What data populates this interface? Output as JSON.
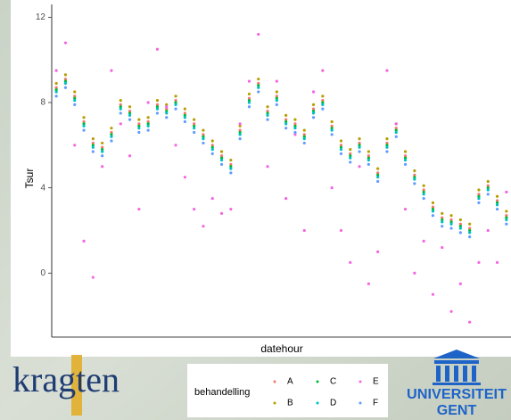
{
  "chart_data": {
    "type": "scatter",
    "x_label": "datehour",
    "y_label": "Tsur",
    "x": [
      0,
      1,
      2,
      3,
      4,
      5,
      6,
      7,
      8,
      9,
      10,
      11,
      12,
      13,
      14,
      15,
      16,
      17,
      18,
      19,
      20,
      21,
      22,
      23,
      24,
      25,
      26,
      27,
      28,
      29,
      30,
      31,
      32,
      33,
      34,
      35,
      36,
      37,
      38,
      39,
      40,
      41,
      42,
      43,
      44,
      45,
      46,
      47,
      48,
      49
    ],
    "xlim": [
      -0.5,
      49.5
    ],
    "ylim": [
      -3,
      12.6
    ],
    "yticks": [
      0,
      4,
      8,
      12
    ],
    "grid": false,
    "legend_title": "behandelling",
    "legend_position": "bottom",
    "series": [
      {
        "name": "A",
        "color": "#F8766D",
        "values": [
          8.7,
          9.1,
          8.3,
          7.1,
          6.1,
          5.9,
          6.6,
          7.9,
          7.6,
          7.0,
          7.1,
          7.9,
          7.7,
          8.1,
          7.5,
          7.0,
          6.5,
          6.0,
          5.5,
          5.1,
          6.7,
          8.2,
          8.9,
          7.6,
          8.3,
          7.2,
          7.0,
          6.5,
          7.7,
          8.1,
          6.9,
          6.0,
          5.6,
          6.1,
          5.5,
          4.7,
          6.1,
          6.8,
          5.5,
          4.6,
          3.9,
          3.1,
          2.6,
          2.5,
          2.3,
          2.1,
          3.7,
          4.1,
          3.4,
          2.7
        ]
      },
      {
        "name": "B",
        "color": "#B79F00",
        "values": [
          8.9,
          9.3,
          8.5,
          7.3,
          6.3,
          6.1,
          6.8,
          8.1,
          7.8,
          7.2,
          7.3,
          8.1,
          7.9,
          8.3,
          7.7,
          7.2,
          6.7,
          6.2,
          5.7,
          5.3,
          6.9,
          8.4,
          9.1,
          7.8,
          8.5,
          7.4,
          7.2,
          6.7,
          7.9,
          8.3,
          7.1,
          6.2,
          5.8,
          6.3,
          5.7,
          4.9,
          6.3,
          7.0,
          5.7,
          4.8,
          4.1,
          3.3,
          2.8,
          2.7,
          2.5,
          2.3,
          3.9,
          4.3,
          3.6,
          2.9
        ]
      },
      {
        "name": "C",
        "color": "#00BA38",
        "values": [
          8.6,
          9.0,
          8.2,
          7.0,
          6.0,
          5.8,
          6.5,
          7.8,
          7.5,
          6.9,
          7.0,
          7.8,
          7.6,
          8.0,
          7.4,
          6.9,
          6.4,
          5.9,
          5.4,
          5.0,
          6.6,
          8.1,
          8.8,
          7.5,
          8.2,
          7.1,
          6.9,
          6.4,
          7.6,
          8.0,
          6.8,
          5.9,
          5.5,
          6.0,
          5.4,
          4.6,
          6.0,
          6.7,
          5.4,
          4.5,
          3.8,
          3.0,
          2.5,
          2.4,
          2.2,
          2.0,
          3.6,
          4.0,
          3.3,
          2.6
        ]
      },
      {
        "name": "D",
        "color": "#00BFC4",
        "values": [
          8.5,
          8.9,
          8.1,
          6.9,
          5.9,
          5.7,
          6.4,
          7.7,
          7.4,
          6.8,
          6.9,
          7.7,
          7.5,
          7.9,
          7.3,
          6.8,
          6.3,
          5.8,
          5.3,
          4.9,
          6.5,
          8.0,
          8.7,
          7.4,
          8.1,
          7.0,
          6.8,
          6.3,
          7.5,
          7.9,
          6.7,
          5.8,
          5.4,
          5.9,
          5.3,
          4.5,
          5.9,
          6.6,
          5.3,
          4.4,
          3.7,
          2.9,
          2.4,
          2.3,
          2.1,
          1.9,
          3.5,
          3.9,
          3.2,
          2.5
        ]
      },
      {
        "name": "E",
        "color": "#F564E3",
        "values": [
          9.5,
          10.8,
          6.0,
          1.5,
          -0.2,
          5.0,
          9.5,
          7.0,
          5.5,
          3.0,
          8.0,
          10.5,
          7.8,
          6.0,
          4.5,
          3.0,
          2.2,
          3.5,
          2.8,
          3.0,
          7.0,
          9.0,
          11.2,
          5.0,
          9.0,
          3.5,
          6.5,
          2.0,
          8.5,
          9.5,
          4.0,
          2.0,
          0.5,
          5.0,
          -0.5,
          1.0,
          9.5,
          7.0,
          3.0,
          0.0,
          1.5,
          -1.0,
          1.2,
          -1.8,
          -0.5,
          -2.3,
          0.5,
          2.0,
          0.5,
          3.8
        ]
      },
      {
        "name": "F",
        "color": "#619CFF",
        "values": [
          8.3,
          8.7,
          7.9,
          6.7,
          5.7,
          5.5,
          6.2,
          7.5,
          7.2,
          6.6,
          6.7,
          7.5,
          7.3,
          7.7,
          7.1,
          6.6,
          6.1,
          5.6,
          5.1,
          4.7,
          6.3,
          7.8,
          8.5,
          7.2,
          7.9,
          6.8,
          6.6,
          6.1,
          7.3,
          7.7,
          6.5,
          5.6,
          5.2,
          5.7,
          5.1,
          4.3,
          5.7,
          6.4,
          5.1,
          4.2,
          3.5,
          2.7,
          2.2,
          2.1,
          1.9,
          1.7,
          3.3,
          3.7,
          3.0,
          2.3
        ]
      }
    ]
  },
  "logos": {
    "left": "kragten",
    "right_line1": "UNIVERSITEIT",
    "right_line2": "GENT"
  }
}
